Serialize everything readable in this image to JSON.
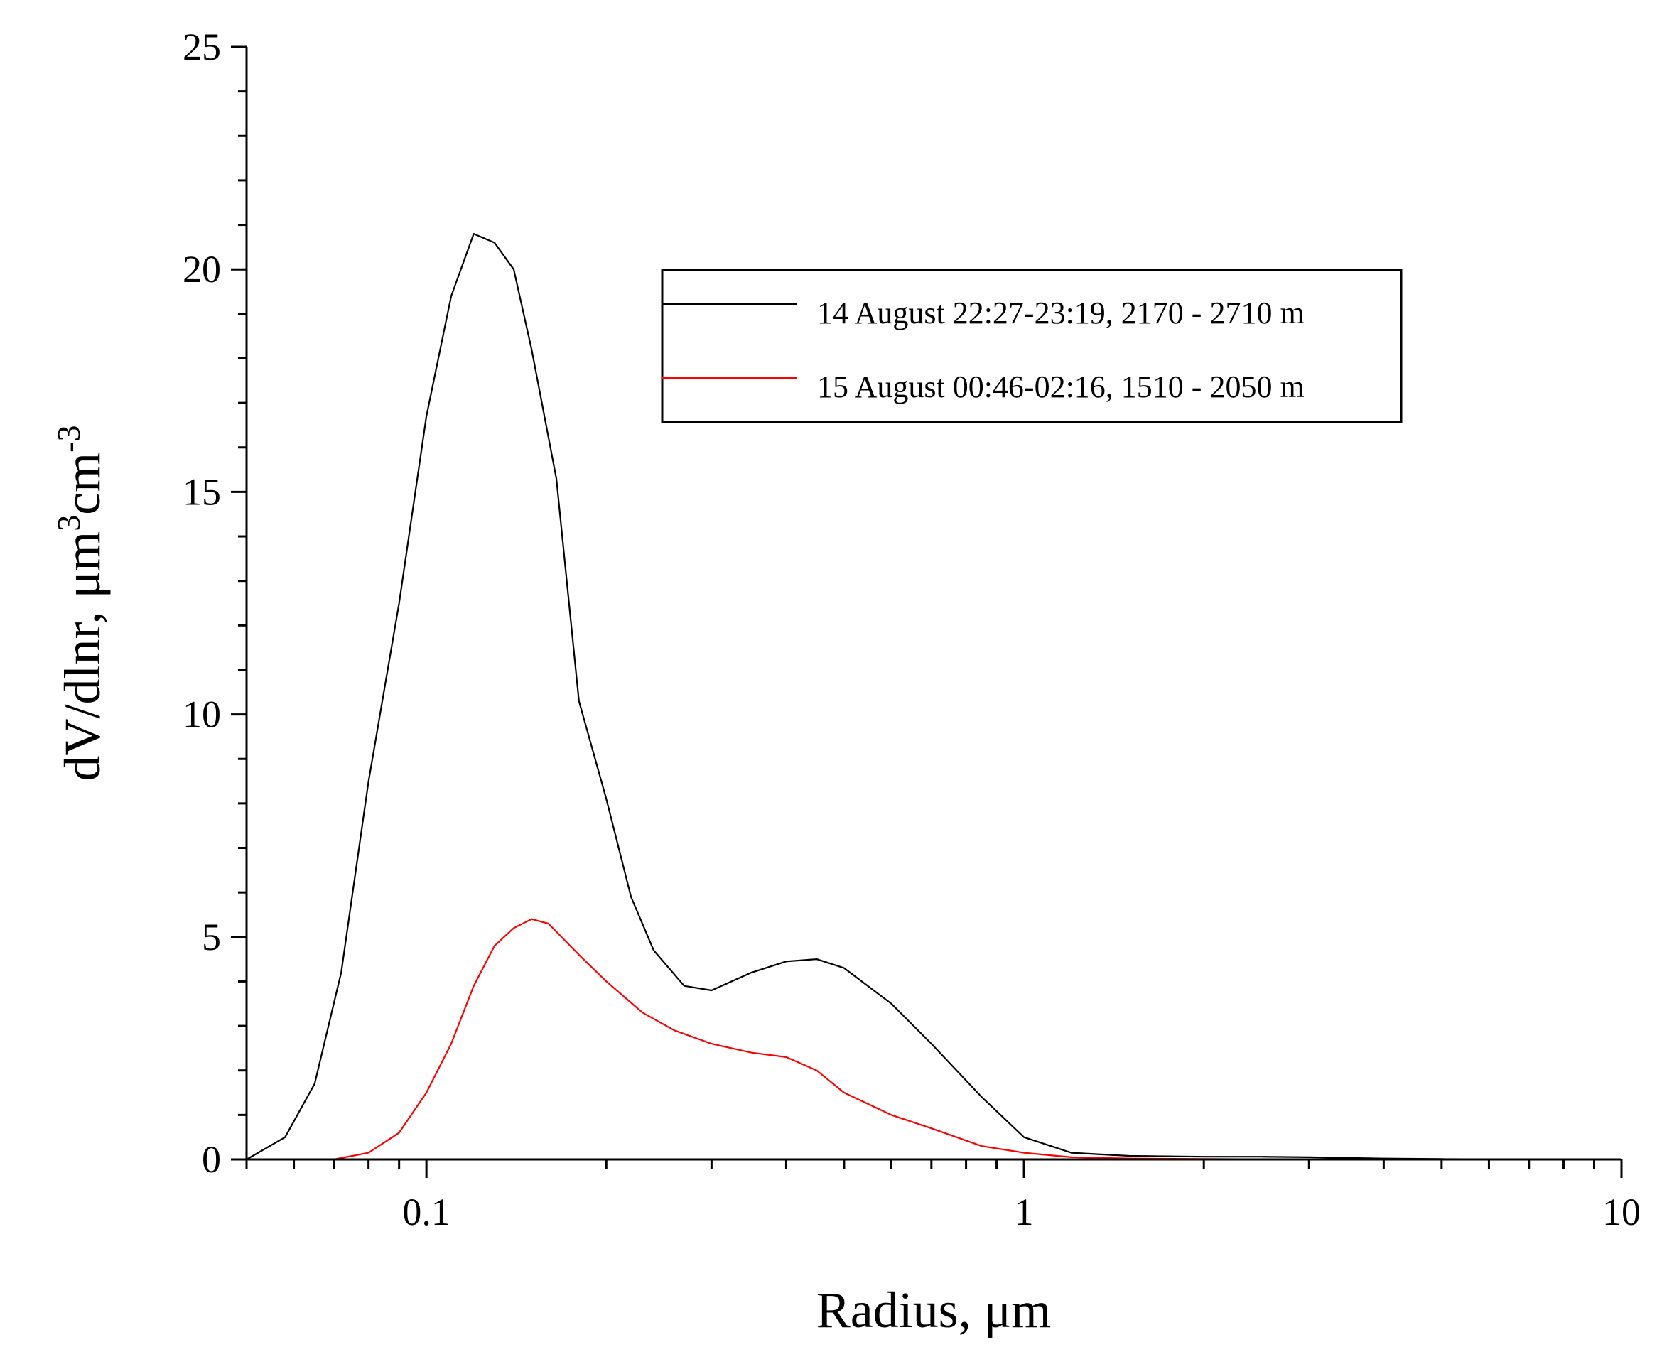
{
  "chart_data": {
    "type": "line",
    "title": "",
    "xlabel": "Radius, μm",
    "ylabel": {
      "prefix": "dV/dlnr, μm",
      "sup1": "3",
      "mid": "cm",
      "sup2": "-3"
    },
    "xscale": "log",
    "xlim": [
      0.05,
      10
    ],
    "ylim": [
      0,
      25
    ],
    "x_ticks": [
      "0.1",
      "1",
      "10"
    ],
    "y_ticks": [
      "0",
      "5",
      "10",
      "15",
      "20",
      "25"
    ],
    "grid": false,
    "legend_position": "upper-right",
    "series": [
      {
        "name": "14 August 22:27-23:19, 2170 - 2710 m",
        "color": "#000000",
        "x": [
          0.05,
          0.058,
          0.065,
          0.072,
          0.08,
          0.09,
          0.1,
          0.11,
          0.12,
          0.13,
          0.14,
          0.15,
          0.165,
          0.18,
          0.2,
          0.22,
          0.24,
          0.27,
          0.3,
          0.35,
          0.4,
          0.45,
          0.5,
          0.6,
          0.7,
          0.85,
          1.0,
          1.2,
          1.5,
          2.0,
          2.5,
          3.0,
          4.0,
          5.0,
          7.0,
          10.0
        ],
        "y": [
          0.0,
          0.5,
          1.7,
          4.2,
          8.5,
          12.5,
          16.7,
          19.4,
          20.8,
          20.6,
          20.0,
          18.2,
          15.3,
          10.3,
          8.1,
          5.9,
          4.7,
          3.9,
          3.8,
          4.2,
          4.45,
          4.5,
          4.3,
          3.5,
          2.6,
          1.4,
          0.5,
          0.15,
          0.08,
          0.06,
          0.06,
          0.05,
          0.02,
          0.01,
          0.0,
          0.0
        ]
      },
      {
        "name": "15 August 00:46-02:16, 1510 - 2050 m",
        "color": "#ff0000",
        "x": [
          0.05,
          0.06,
          0.07,
          0.08,
          0.09,
          0.1,
          0.11,
          0.12,
          0.13,
          0.14,
          0.15,
          0.16,
          0.18,
          0.2,
          0.23,
          0.26,
          0.3,
          0.35,
          0.4,
          0.45,
          0.5,
          0.6,
          0.7,
          0.85,
          1.0,
          1.2,
          1.5,
          2.0,
          3.0,
          4.0,
          5.0,
          7.0,
          10.0
        ],
        "y": [
          0.0,
          0.0,
          0.0,
          0.15,
          0.6,
          1.5,
          2.6,
          3.9,
          4.8,
          5.2,
          5.4,
          5.3,
          4.6,
          4.0,
          3.3,
          2.9,
          2.6,
          2.4,
          2.3,
          2.0,
          1.5,
          1.0,
          0.7,
          0.3,
          0.15,
          0.05,
          0.02,
          0.01,
          0.0,
          0.0,
          0.0,
          0.0,
          0.0
        ]
      }
    ]
  }
}
